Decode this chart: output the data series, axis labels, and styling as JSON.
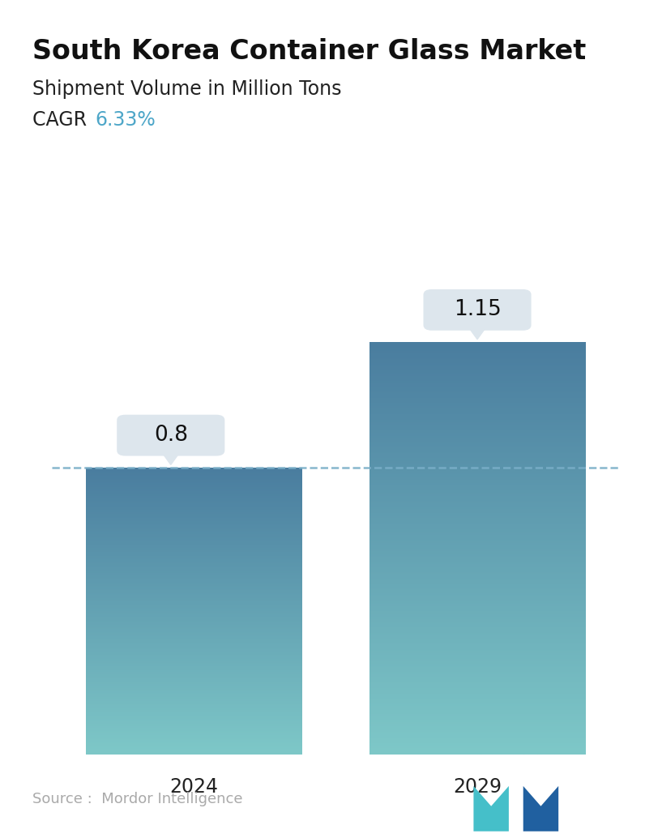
{
  "title": "South Korea Container Glass Market",
  "subtitle": "Shipment Volume in Million Tons",
  "cagr_label": "CAGR  ",
  "cagr_value": "6.33%",
  "cagr_color": "#4da6c8",
  "categories": [
    "2024",
    "2029"
  ],
  "values": [
    0.8,
    1.15
  ],
  "bar_color_top": "#4a7d9f",
  "bar_color_bottom": "#7ec8c8",
  "dashed_line_y": 0.8,
  "dashed_line_color": "#7aaec8",
  "source_text": "Source :  Mordor Intelligence",
  "source_color": "#aaaaaa",
  "background_color": "#ffffff",
  "label_box_color": "#dde6ed",
  "label_text_color": "#111111",
  "title_fontsize": 24,
  "subtitle_fontsize": 17,
  "cagr_fontsize": 17,
  "bar_label_fontsize": 19,
  "xlabel_fontsize": 17,
  "source_fontsize": 13,
  "ylim": [
    0,
    1.45
  ],
  "bar_width": 0.38
}
